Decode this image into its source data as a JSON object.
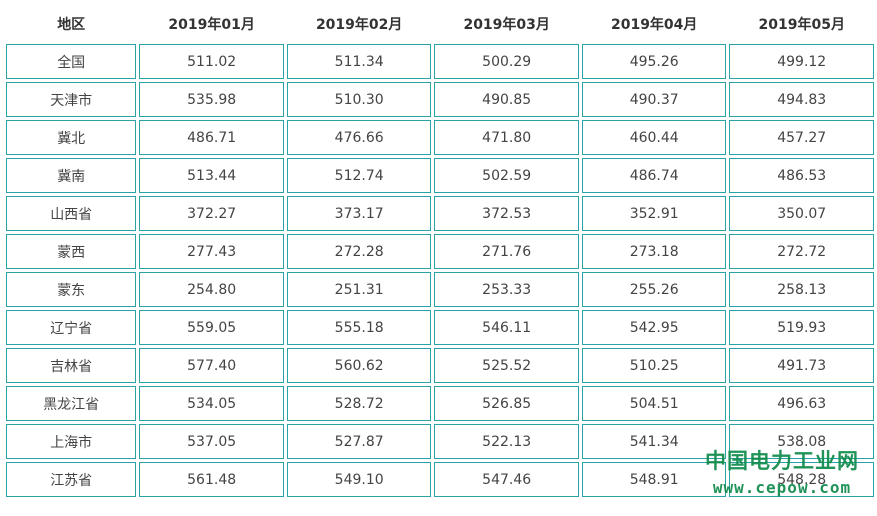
{
  "table": {
    "headers": [
      "地区",
      "2019年01月",
      "2019年02月",
      "2019年03月",
      "2019年04月",
      "2019年05月"
    ],
    "rows": [
      [
        "全国",
        "511.02",
        "511.34",
        "500.29",
        "495.26",
        "499.12"
      ],
      [
        "天津市",
        "535.98",
        "510.30",
        "490.85",
        "490.37",
        "494.83"
      ],
      [
        "冀北",
        "486.71",
        "476.66",
        "471.80",
        "460.44",
        "457.27"
      ],
      [
        "冀南",
        "513.44",
        "512.74",
        "502.59",
        "486.74",
        "486.53"
      ],
      [
        "山西省",
        "372.27",
        "373.17",
        "372.53",
        "352.91",
        "350.07"
      ],
      [
        "蒙西",
        "277.43",
        "272.28",
        "271.76",
        "273.18",
        "272.72"
      ],
      [
        "蒙东",
        "254.80",
        "251.31",
        "253.33",
        "255.26",
        "258.13"
      ],
      [
        "辽宁省",
        "559.05",
        "555.18",
        "546.11",
        "542.95",
        "519.93"
      ],
      [
        "吉林省",
        "577.40",
        "560.62",
        "525.52",
        "510.25",
        "491.73"
      ],
      [
        "黑龙江省",
        "534.05",
        "528.72",
        "526.85",
        "504.51",
        "496.63"
      ],
      [
        "上海市",
        "537.05",
        "527.87",
        "522.13",
        "541.34",
        "538.08"
      ],
      [
        "江苏省",
        "561.48",
        "549.10",
        "547.46",
        "548.91",
        "548.28"
      ]
    ]
  },
  "watermark": {
    "title": "中国电力工业网",
    "url": "www.cepow.com"
  },
  "colors": {
    "cell_border": "#2aa3a7",
    "watermark": "#0e8a4a"
  }
}
